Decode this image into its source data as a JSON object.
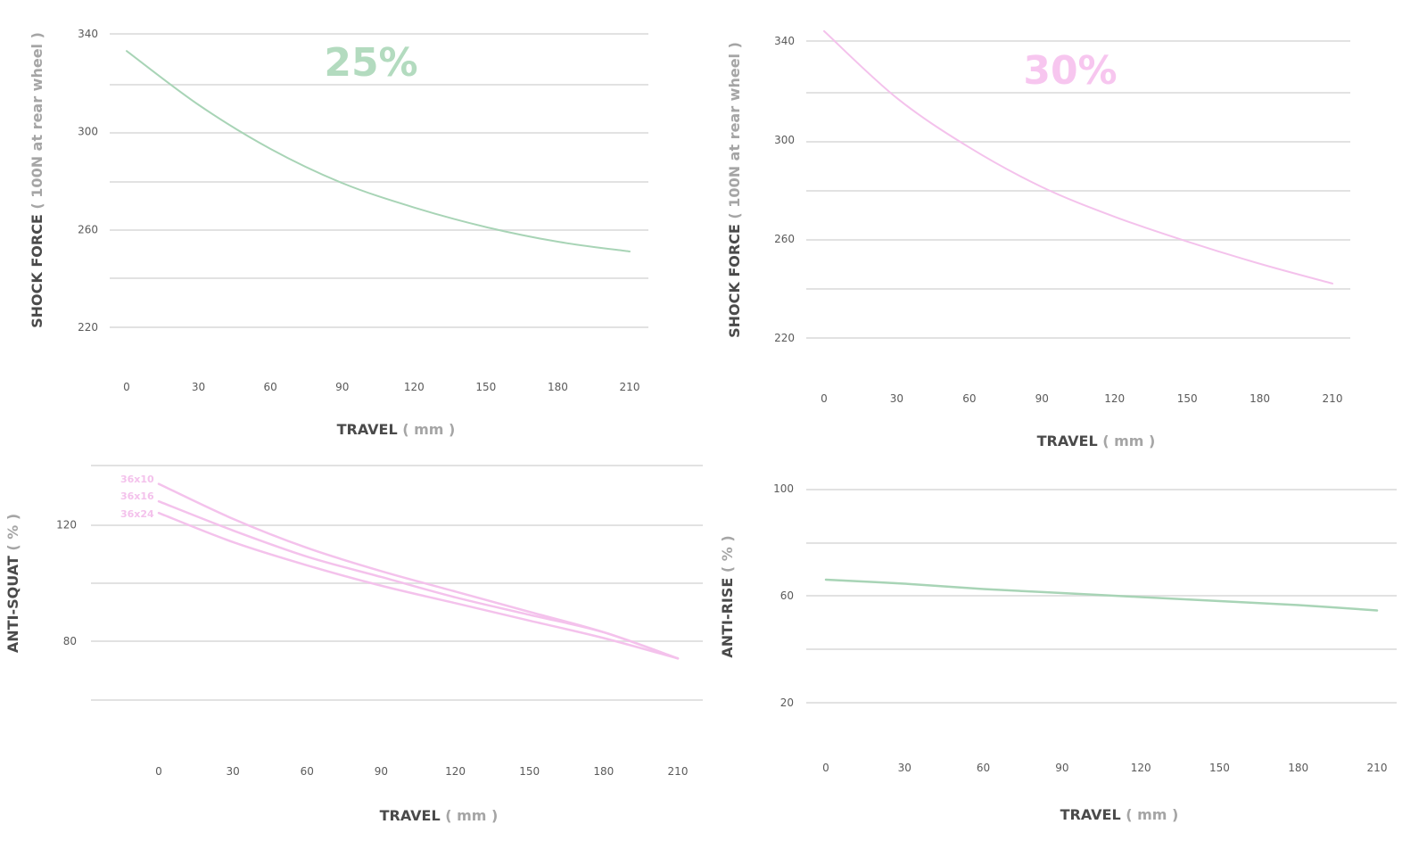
{
  "chart_data": [
    {
      "id": "tl",
      "type": "line",
      "title": "25%",
      "title_color": "#b3dbbf",
      "xlabel": "TRAVEL",
      "xlabel_unit": "( mm )",
      "ylabel": "SHOCK FORCE",
      "ylabel_unit": "( 100N at rear wheel )",
      "xticks": [
        0,
        30,
        60,
        90,
        120,
        150,
        180,
        210
      ],
      "yticks": [
        340,
        300,
        260,
        220
      ],
      "ylim": [
        220,
        340
      ],
      "grid": true,
      "series": [
        {
          "color": "#a8d4b6",
          "x": [
            0,
            30,
            60,
            90,
            120,
            150,
            180,
            210
          ],
          "y": [
            333,
            311,
            293,
            279,
            269,
            261,
            255,
            251
          ]
        }
      ]
    },
    {
      "id": "tr",
      "type": "line",
      "title": "30%",
      "title_color": "#f7c6ef",
      "xlabel": "TRAVEL",
      "xlabel_unit": "( mm )",
      "ylabel": "SHOCK FORCE",
      "ylabel_unit": "( 100N at rear wheel )",
      "xticks": [
        0,
        30,
        60,
        90,
        120,
        150,
        180,
        210
      ],
      "yticks": [
        340,
        300,
        260,
        220
      ],
      "ylim": [
        220,
        340
      ],
      "grid": true,
      "series": [
        {
          "color": "#f4c2ec",
          "x": [
            0,
            30,
            60,
            90,
            120,
            150,
            180,
            210
          ],
          "y": [
            344,
            317,
            297,
            281,
            269,
            259,
            250,
            242
          ]
        }
      ]
    },
    {
      "id": "bl",
      "type": "line",
      "title": "",
      "xlabel": "TRAVEL",
      "xlabel_unit": "( mm )",
      "ylabel": "ANTI-SQUAT",
      "ylabel_unit": "( % )",
      "xticks": [
        0,
        30,
        60,
        90,
        120,
        150,
        180,
        210
      ],
      "yticks": [
        120,
        80
      ],
      "ylim": [
        60,
        140
      ],
      "grid": true,
      "legend": "top-left",
      "series": [
        {
          "name": "36x10",
          "color": "#f4c2ec",
          "x": [
            0,
            30,
            60,
            90,
            120,
            150,
            180,
            210
          ],
          "y": [
            134,
            122,
            112,
            104,
            97,
            90,
            83,
            74
          ]
        },
        {
          "name": "36x16",
          "color": "#f4c2ec",
          "x": [
            0,
            30,
            60,
            90,
            120,
            150,
            180,
            210
          ],
          "y": [
            128,
            118,
            109,
            102,
            95,
            89,
            83,
            74
          ]
        },
        {
          "name": "36x24",
          "color": "#f4c2ec",
          "x": [
            0,
            30,
            60,
            90,
            120,
            150,
            180,
            210
          ],
          "y": [
            124,
            114,
            106,
            99,
            93,
            87,
            81,
            74
          ]
        }
      ]
    },
    {
      "id": "br",
      "type": "line",
      "title": "",
      "xlabel": "TRAVEL",
      "xlabel_unit": "( mm )",
      "ylabel": "ANTI-RISE",
      "ylabel_unit": "( % )",
      "xticks": [
        0,
        30,
        60,
        90,
        120,
        150,
        180,
        210
      ],
      "yticks": [
        100,
        60,
        20
      ],
      "ylim": [
        0,
        100
      ],
      "grid": true,
      "series": [
        {
          "color": "#a8d4b6",
          "x": [
            0,
            30,
            60,
            90,
            120,
            150,
            180,
            210
          ],
          "y": [
            66,
            64.5,
            62.5,
            61,
            59.5,
            58,
            56.5,
            54.5
          ]
        }
      ]
    }
  ]
}
